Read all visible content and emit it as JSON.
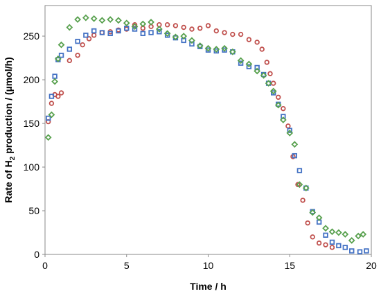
{
  "chart_data": {
    "type": "scatter",
    "xlabel": "Time / h",
    "ylabel_prefix": "Rate of H",
    "ylabel_sub": "2",
    "ylabel_suffix": " production / (µmol/h)",
    "xlim": [
      0,
      20
    ],
    "ylim": [
      0,
      285
    ],
    "xticks": [
      0,
      5,
      10,
      15,
      20
    ],
    "yticks": [
      0,
      50,
      100,
      150,
      200,
      250
    ],
    "grid": false,
    "series": [
      {
        "color": "#c0504d",
        "marker": "circle",
        "points": [
          [
            0.2,
            152
          ],
          [
            0.4,
            173
          ],
          [
            0.6,
            183
          ],
          [
            0.8,
            181
          ],
          [
            1.0,
            185
          ],
          [
            1.5,
            222
          ],
          [
            2.0,
            228
          ],
          [
            2.3,
            240
          ],
          [
            2.7,
            247
          ],
          [
            3.0,
            251
          ],
          [
            3.5,
            254
          ],
          [
            4.0,
            255
          ],
          [
            4.5,
            257
          ],
          [
            5.0,
            258
          ],
          [
            5.5,
            263
          ],
          [
            6.0,
            259
          ],
          [
            6.5,
            261
          ],
          [
            7.0,
            263
          ],
          [
            7.5,
            263
          ],
          [
            8.0,
            262
          ],
          [
            8.5,
            260
          ],
          [
            9.0,
            258
          ],
          [
            9.5,
            259
          ],
          [
            10.0,
            262
          ],
          [
            10.5,
            256
          ],
          [
            11.0,
            254
          ],
          [
            11.5,
            252
          ],
          [
            12.0,
            252
          ],
          [
            12.5,
            246
          ],
          [
            13.0,
            243
          ],
          [
            13.3,
            235
          ],
          [
            13.6,
            220
          ],
          [
            13.8,
            207
          ],
          [
            14.0,
            196
          ],
          [
            14.3,
            180
          ],
          [
            14.6,
            167
          ],
          [
            14.9,
            147
          ],
          [
            15.2,
            112
          ],
          [
            15.5,
            80
          ],
          [
            15.8,
            62
          ],
          [
            16.1,
            36
          ],
          [
            16.4,
            20
          ],
          [
            16.8,
            13
          ],
          [
            17.2,
            11
          ],
          [
            17.6,
            8
          ]
        ]
      },
      {
        "color": "#4472c4",
        "marker": "square",
        "points": [
          [
            0.2,
            156
          ],
          [
            0.4,
            181
          ],
          [
            0.6,
            204
          ],
          [
            0.8,
            223
          ],
          [
            1.0,
            228
          ],
          [
            1.5,
            235
          ],
          [
            2.0,
            244
          ],
          [
            2.5,
            251
          ],
          [
            3.0,
            256
          ],
          [
            3.5,
            254
          ],
          [
            4.0,
            253
          ],
          [
            4.5,
            256
          ],
          [
            5.0,
            259
          ],
          [
            5.5,
            258
          ],
          [
            6.0,
            253
          ],
          [
            6.5,
            254
          ],
          [
            7.0,
            255
          ],
          [
            7.5,
            251
          ],
          [
            8.0,
            248
          ],
          [
            8.5,
            245
          ],
          [
            9.0,
            241
          ],
          [
            9.5,
            238
          ],
          [
            10.0,
            234
          ],
          [
            10.5,
            233
          ],
          [
            11.0,
            234
          ],
          [
            11.5,
            232
          ],
          [
            12.0,
            219
          ],
          [
            12.5,
            215
          ],
          [
            13.0,
            214
          ],
          [
            13.4,
            206
          ],
          [
            13.7,
            196
          ],
          [
            14.0,
            185
          ],
          [
            14.3,
            172
          ],
          [
            14.6,
            158
          ],
          [
            15.0,
            142
          ],
          [
            15.3,
            113
          ],
          [
            15.6,
            96
          ],
          [
            16.0,
            76
          ],
          [
            16.4,
            49
          ],
          [
            16.8,
            37
          ],
          [
            17.2,
            22
          ],
          [
            17.6,
            14
          ],
          [
            18.0,
            10
          ],
          [
            18.4,
            8
          ],
          [
            18.8,
            4
          ],
          [
            19.3,
            3
          ],
          [
            19.7,
            4
          ]
        ]
      },
      {
        "color": "#59a14f",
        "marker": "diamond",
        "points": [
          [
            0.2,
            134
          ],
          [
            0.4,
            160
          ],
          [
            0.6,
            198
          ],
          [
            0.8,
            224
          ],
          [
            1.0,
            240
          ],
          [
            1.5,
            260
          ],
          [
            2.0,
            269
          ],
          [
            2.5,
            271
          ],
          [
            3.0,
            270
          ],
          [
            3.5,
            268
          ],
          [
            4.0,
            269
          ],
          [
            4.5,
            268
          ],
          [
            5.0,
            265
          ],
          [
            5.5,
            261
          ],
          [
            6.0,
            264
          ],
          [
            6.5,
            266
          ],
          [
            7.0,
            258
          ],
          [
            7.5,
            253
          ],
          [
            8.0,
            249
          ],
          [
            8.5,
            250
          ],
          [
            9.0,
            245
          ],
          [
            9.5,
            239
          ],
          [
            10.0,
            236
          ],
          [
            10.5,
            235
          ],
          [
            11.0,
            236
          ],
          [
            11.5,
            232
          ],
          [
            12.0,
            222
          ],
          [
            12.5,
            218
          ],
          [
            13.0,
            210
          ],
          [
            13.4,
            205
          ],
          [
            13.7,
            196
          ],
          [
            14.0,
            187
          ],
          [
            14.3,
            171
          ],
          [
            14.6,
            154
          ],
          [
            15.0,
            139
          ],
          [
            15.3,
            126
          ],
          [
            15.6,
            80
          ],
          [
            16.0,
            76
          ],
          [
            16.4,
            48
          ],
          [
            16.8,
            42
          ],
          [
            17.2,
            30
          ],
          [
            17.6,
            26
          ],
          [
            18.0,
            25
          ],
          [
            18.4,
            23
          ],
          [
            18.8,
            16
          ],
          [
            19.2,
            21
          ],
          [
            19.5,
            23
          ]
        ]
      }
    ]
  }
}
